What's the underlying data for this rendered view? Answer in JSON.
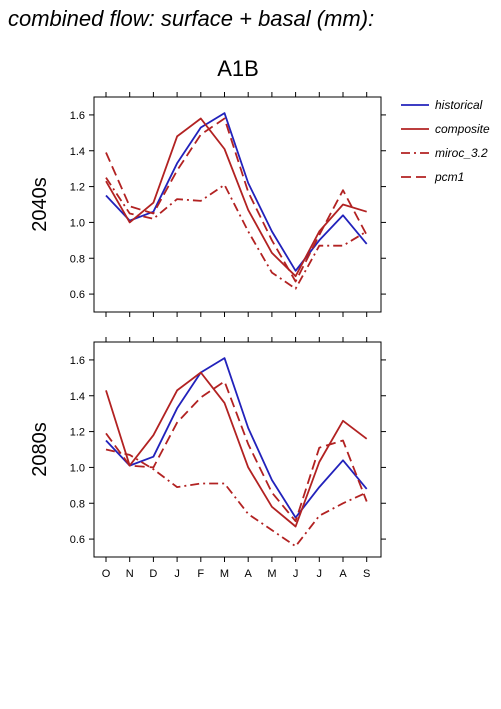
{
  "page_title": "combined flow: surface + basal (mm):",
  "scenario": "A1B",
  "chart_data": {
    "type": "line",
    "categories": [
      "O",
      "N",
      "D",
      "J",
      "F",
      "M",
      "A",
      "M",
      "J",
      "J",
      "A",
      "S"
    ],
    "legend": {
      "placement": "right"
    },
    "series_styles": [
      {
        "name": "historical",
        "color": "#2222bb",
        "dash": "solid"
      },
      {
        "name": "composite",
        "color": "#b22222",
        "dash": "solid"
      },
      {
        "name": "miroc_3.2",
        "color": "#b22222",
        "dash": "dashdot"
      },
      {
        "name": "pcm1",
        "color": "#b22222",
        "dash": "dashed"
      }
    ],
    "panels": [
      {
        "ylabel": "2040s",
        "ylim": [
          0.5,
          1.7
        ],
        "yticks": [
          "0.6",
          "0.8",
          "1.0",
          "1.2",
          "1.4",
          "1.6"
        ],
        "series": [
          {
            "name": "historical",
            "values": [
              1.15,
              1.01,
              1.06,
              1.33,
              1.53,
              1.61,
              1.22,
              0.95,
              0.73,
              0.9,
              1.04,
              0.88
            ]
          },
          {
            "name": "composite",
            "values": [
              1.23,
              1.0,
              1.11,
              1.48,
              1.58,
              1.41,
              1.07,
              0.83,
              0.7,
              0.95,
              1.1,
              1.06
            ]
          },
          {
            "name": "miroc_3.2",
            "values": [
              1.25,
              1.05,
              1.02,
              1.13,
              1.12,
              1.21,
              0.95,
              0.72,
              0.63,
              0.87,
              0.87,
              0.95
            ]
          },
          {
            "name": "pcm1",
            "values": [
              1.39,
              1.09,
              1.05,
              1.29,
              1.49,
              1.58,
              1.17,
              0.9,
              0.67,
              0.93,
              1.18,
              0.93
            ]
          }
        ]
      },
      {
        "ylabel": "2080s",
        "ylim": [
          0.5,
          1.7
        ],
        "yticks": [
          "0.6",
          "0.8",
          "1.0",
          "1.2",
          "1.4",
          "1.6"
        ],
        "series": [
          {
            "name": "historical",
            "values": [
              1.15,
              1.01,
              1.06,
              1.33,
              1.53,
              1.61,
              1.22,
              0.93,
              0.72,
              0.89,
              1.04,
              0.88
            ]
          },
          {
            "name": "composite",
            "values": [
              1.43,
              1.01,
              1.18,
              1.43,
              1.53,
              1.36,
              1.0,
              0.78,
              0.67,
              1.03,
              1.26,
              1.16
            ]
          },
          {
            "name": "miroc_3.2",
            "values": [
              1.1,
              1.07,
              0.99,
              0.89,
              0.91,
              0.91,
              0.74,
              0.65,
              0.56,
              0.73,
              0.8,
              0.86
            ]
          },
          {
            "name": "pcm1",
            "values": [
              1.19,
              1.01,
              1.0,
              1.25,
              1.39,
              1.48,
              1.13,
              0.86,
              0.7,
              1.11,
              1.15,
              0.81
            ]
          }
        ]
      }
    ]
  }
}
